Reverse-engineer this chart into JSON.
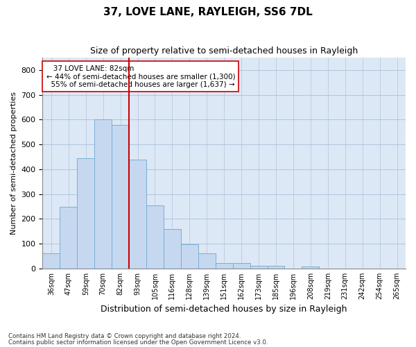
{
  "title": "37, LOVE LANE, RAYLEIGH, SS6 7DL",
  "subtitle": "Size of property relative to semi-detached houses in Rayleigh",
  "xlabel": "Distribution of semi-detached houses by size in Rayleigh",
  "ylabel": "Number of semi-detached properties",
  "bins": [
    "36sqm",
    "47sqm",
    "59sqm",
    "70sqm",
    "82sqm",
    "93sqm",
    "105sqm",
    "116sqm",
    "128sqm",
    "139sqm",
    "151sqm",
    "162sqm",
    "173sqm",
    "185sqm",
    "196sqm",
    "208sqm",
    "219sqm",
    "231sqm",
    "242sqm",
    "254sqm",
    "265sqm"
  ],
  "counts": [
    60,
    250,
    445,
    600,
    580,
    440,
    255,
    158,
    97,
    60,
    22,
    22,
    12,
    10,
    0,
    8,
    0,
    0,
    0,
    0,
    0
  ],
  "property_label": "37 LOVE LANE: 82sqm",
  "pct_smaller": 44,
  "n_smaller": 1300,
  "pct_larger": 55,
  "n_larger": 1637,
  "bar_color": "#c5d8f0",
  "bar_edge_color": "#7aafd4",
  "line_color": "#cc0000",
  "annotation_box_color": "#ffffff",
  "annotation_box_edge": "#cc0000",
  "grid_color": "#b0c4de",
  "background_color": "#dce8f5",
  "ylim": [
    0,
    850
  ],
  "yticks": [
    0,
    100,
    200,
    300,
    400,
    500,
    600,
    700,
    800
  ],
  "footnote1": "Contains HM Land Registry data © Crown copyright and database right 2024.",
  "footnote2": "Contains public sector information licensed under the Open Government Licence v3.0."
}
